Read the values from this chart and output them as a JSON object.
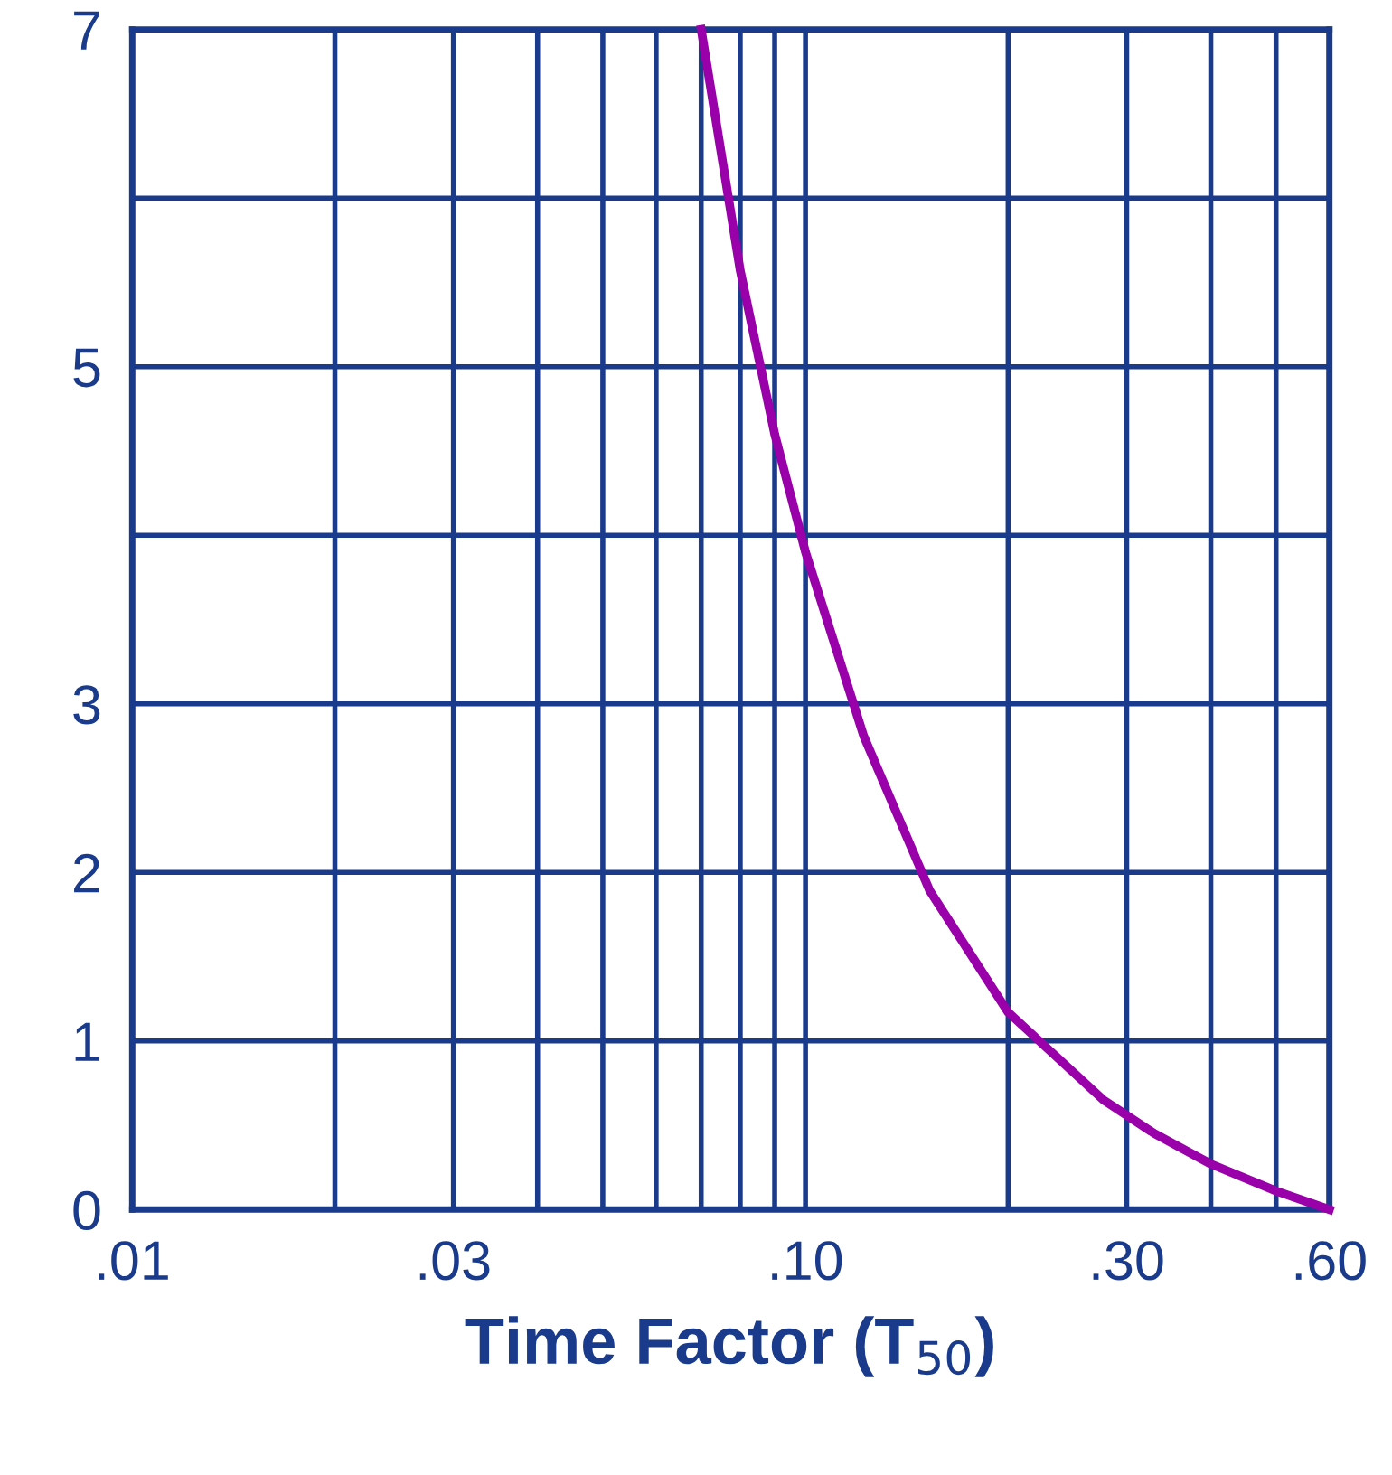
{
  "chart_data": {
    "type": "line",
    "xlabel": "Time Factor (T$_{50}$)",
    "log": "x",
    "x": [
      0.07,
      0.08,
      0.09,
      0.1,
      0.122,
      0.153,
      0.2,
      0.277,
      0.33,
      0.4,
      0.5,
      0.6
    ],
    "series": [
      {
        "color": "#9900aa",
        "values": [
          7,
          5.57,
          4.6,
          3.9,
          2.81,
          1.89,
          1.17,
          0.65,
          0.45,
          0.27,
          0.11,
          0
        ]
      }
    ],
    "xlim": [
      0.01,
      0.6
    ],
    "ylim": [
      0,
      7
    ],
    "xticks": [
      {
        "value": 0.01,
        "label": ".01"
      },
      {
        "value": 0.02,
        "label": null
      },
      {
        "value": 0.03,
        "label": ".03"
      },
      {
        "value": 0.04,
        "label": null
      },
      {
        "value": 0.05,
        "label": null
      },
      {
        "value": 0.06,
        "label": null
      },
      {
        "value": 0.07,
        "label": null
      },
      {
        "value": 0.08,
        "label": null
      },
      {
        "value": 0.09,
        "label": null
      },
      {
        "value": 0.1,
        "label": ".10"
      },
      {
        "value": 0.2,
        "label": null
      },
      {
        "value": 0.3,
        "label": ".30"
      },
      {
        "value": 0.4,
        "label": null
      },
      {
        "value": 0.5,
        "label": null
      },
      {
        "value": 0.6,
        "label": ".60"
      }
    ],
    "yticks": [
      0,
      1,
      2,
      3,
      {
        "value": 4,
        "label": null
      },
      5,
      {
        "value": 6,
        "label": null
      },
      7
    ],
    "grid": true,
    "marker": "none",
    "line_style": "solid"
  }
}
